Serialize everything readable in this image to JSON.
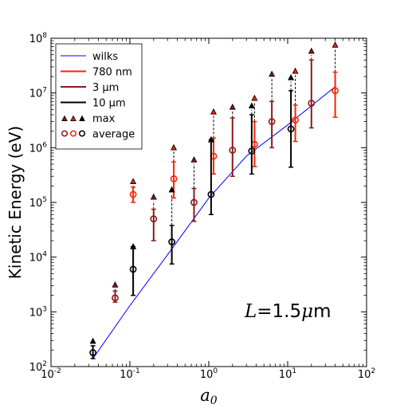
{
  "chart_data": {
    "type": "scatter",
    "xscale": "log",
    "yscale": "log",
    "xlim": [
      0.01,
      100
    ],
    "ylim": [
      100,
      100000000
    ],
    "xlabel": {
      "symbol": "a",
      "sub": "0"
    },
    "ylabel": "Kinetic Energy (eV)",
    "xticks": [
      {
        "value": 0.01,
        "base": "10",
        "exp": "-2"
      },
      {
        "value": 0.1,
        "base": "10",
        "exp": "-1"
      },
      {
        "value": 1,
        "base": "10",
        "exp": "0"
      },
      {
        "value": 10,
        "base": "10",
        "exp": "1"
      },
      {
        "value": 100,
        "base": "10",
        "exp": "2"
      }
    ],
    "yticks": [
      {
        "value": 100,
        "base": "10",
        "exp": "2"
      },
      {
        "value": 1000,
        "base": "10",
        "exp": "3"
      },
      {
        "value": 10000,
        "base": "10",
        "exp": "4"
      },
      {
        "value": 100000,
        "base": "10",
        "exp": "5"
      },
      {
        "value": 1000000,
        "base": "10",
        "exp": "6"
      },
      {
        "value": 10000000,
        "base": "10",
        "exp": "7"
      },
      {
        "value": 100000000,
        "base": "10",
        "exp": "8"
      }
    ],
    "annotation": {
      "symbol": "L",
      "rest": "=1.5",
      "mu": "μ",
      "unit": "m"
    },
    "legend": {
      "position": "top-left",
      "entries": [
        {
          "label": "wilks",
          "kind": "line",
          "color": "#0000ff"
        },
        {
          "label": "780 nm",
          "kind": "errbar",
          "color": "#ff2200"
        },
        {
          "label": "3 μm",
          "kind": "errbar",
          "color": "#8b1a1a"
        },
        {
          "label": "10 μm",
          "kind": "errbar",
          "color": "#000000"
        },
        {
          "label": "max",
          "kind": "triangles",
          "colors": [
            "#8b1a1a",
            "#ff2200",
            "#000000"
          ]
        },
        {
          "label": "average",
          "kind": "circles",
          "colors": [
            "#8b1a1a",
            "#ff2200",
            "#000000"
          ]
        }
      ]
    },
    "wilks": {
      "name": "wilks",
      "color": "#0000ff",
      "x": [
        0.034,
        0.1,
        0.3,
        1,
        3,
        10,
        40
      ],
      "y": [
        140,
        1300,
        11000,
        120000,
        700000,
        2600000,
        13000000
      ]
    },
    "series": [
      {
        "name": "780 nm",
        "color": "#ff2200",
        "points": [
          {
            "x": 0.11,
            "avg": 140000,
            "low": 100000,
            "high": 190000,
            "max": 240000
          },
          {
            "x": 0.36,
            "avg": 270000,
            "low": 120000,
            "high": 550000,
            "max": 1000000
          },
          {
            "x": 1.15,
            "avg": 700000,
            "low": 330000,
            "high": 1500000,
            "max": 4500000
          },
          {
            "x": 3.8,
            "avg": 1150000,
            "low": 450000,
            "high": 3000000,
            "max": 8000000
          },
          {
            "x": 12.5,
            "avg": 3200000,
            "low": 1300000,
            "high": 6000000,
            "max": 25000000
          },
          {
            "x": 40,
            "avg": 11000000,
            "low": 3600000,
            "high": 24000000,
            "max": 75000000
          }
        ]
      },
      {
        "name": "3 μm",
        "color": "#8b1a1a",
        "points": [
          {
            "x": 0.065,
            "avg": 1800,
            "low": 1500,
            "high": 2400,
            "max": 3100
          },
          {
            "x": 0.2,
            "avg": 50000,
            "low": 20000,
            "high": 75000,
            "max": 125000
          },
          {
            "x": 0.65,
            "avg": 100000,
            "low": 45000,
            "high": 180000,
            "max": 600000
          },
          {
            "x": 2,
            "avg": 900000,
            "low": 300000,
            "high": 3500000,
            "max": 5500000
          },
          {
            "x": 6.3,
            "avg": 3000000,
            "low": 1000000,
            "high": 7000000,
            "max": 22000000
          },
          {
            "x": 20,
            "avg": 6500000,
            "low": 2300000,
            "high": 40000000,
            "max": 58000000
          }
        ]
      },
      {
        "name": "10 μm",
        "color": "#000000",
        "points": [
          {
            "x": 0.034,
            "avg": 180,
            "low": 140,
            "high": 240,
            "max": 290
          },
          {
            "x": 0.11,
            "avg": 6000,
            "low": 2000,
            "high": 15500,
            "max": 15500
          },
          {
            "x": 0.34,
            "avg": 19000,
            "low": 7500,
            "high": 38000,
            "max": 170000
          },
          {
            "x": 1.07,
            "avg": 140000,
            "low": 60000,
            "high": 1400000,
            "max": 1400000
          },
          {
            "x": 3.5,
            "avg": 870000,
            "low": 330000,
            "high": 4000000,
            "max": 5800000
          },
          {
            "x": 11,
            "avg": 2200000,
            "low": 440000,
            "high": 11000000,
            "max": 19000000
          }
        ]
      }
    ]
  }
}
